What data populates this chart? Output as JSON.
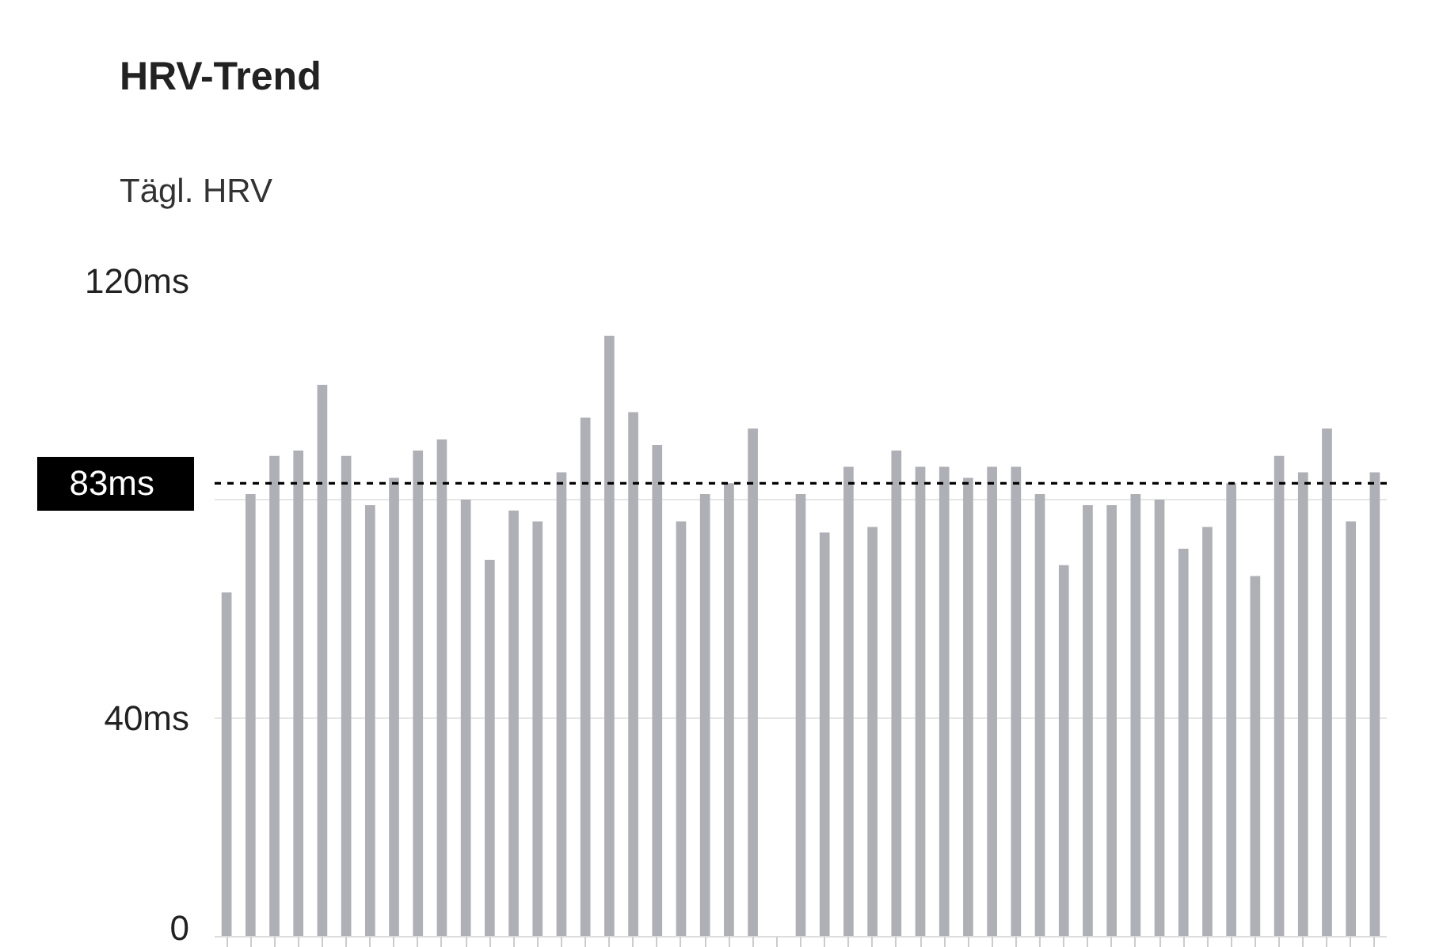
{
  "chart_data": {
    "type": "bar",
    "title": "HRV-Trend",
    "subtitle": "Tägl. HRV",
    "categories": [
      null,
      null,
      null,
      null,
      null,
      null,
      null,
      null,
      null,
      null,
      null,
      null,
      null,
      null,
      null,
      null,
      null,
      null,
      null,
      null,
      null,
      null,
      null,
      null,
      null,
      null,
      null,
      null,
      null,
      null,
      null,
      null,
      null,
      null,
      null,
      null,
      null,
      null,
      null,
      null,
      null,
      null,
      null,
      null,
      null,
      null,
      null,
      null,
      null
    ],
    "values": [
      63,
      81,
      88,
      89,
      101,
      88,
      79,
      84,
      89,
      91,
      80,
      69,
      78,
      76,
      85,
      95,
      110,
      96,
      90,
      76,
      81,
      83,
      93,
      null,
      81,
      74,
      86,
      75,
      89,
      86,
      86,
      84,
      86,
      86,
      81,
      68,
      79,
      79,
      81,
      80,
      71,
      75,
      83,
      66,
      88,
      85,
      93,
      76,
      85
    ],
    "color": "#aeb0b5",
    "ylim": [
      0,
      120
    ],
    "yticks": [
      {
        "value": 0,
        "label": "0"
      },
      {
        "value": 40,
        "label": "40ms"
      },
      {
        "value": 80,
        "label": null
      },
      {
        "value": 120,
        "label": "120ms"
      }
    ],
    "grid": "y",
    "tick_labels": "y",
    "ref_lines": [
      {
        "axis": "y",
        "value": 83,
        "label": "83ms",
        "color": "#000000",
        "line_style": "dashed"
      }
    ]
  }
}
